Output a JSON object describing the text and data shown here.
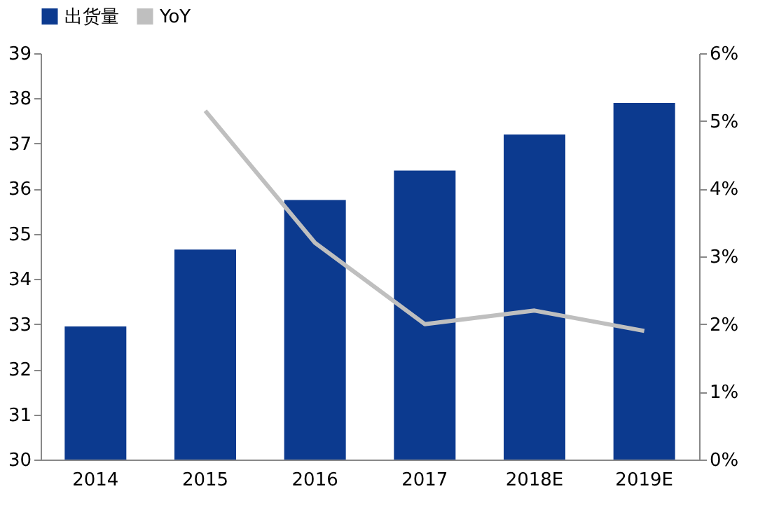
{
  "chart_data": {
    "type": "bar",
    "categories": [
      "2014",
      "2015",
      "2016",
      "2017",
      "2018E",
      "2019E"
    ],
    "series": [
      {
        "name": "出货量",
        "color": "#0c3a8f",
        "values": [
          32.95,
          34.65,
          35.75,
          36.4,
          37.2,
          37.9
        ]
      },
      {
        "name": "YoY",
        "type": "line",
        "axis": "y2",
        "color": "#bfbfbf",
        "values": [
          null,
          5.15,
          3.2,
          2.0,
          2.2,
          1.9
        ]
      }
    ],
    "ylim": [
      30,
      39
    ],
    "yticks": [
      30,
      31,
      32,
      33,
      34,
      35,
      36,
      37,
      38,
      39
    ],
    "y2lim": [
      0,
      6
    ],
    "y2ticks": [
      {
        "value": 0,
        "label": "0%"
      },
      {
        "value": 1,
        "label": "1%"
      },
      {
        "value": 2,
        "label": "2%"
      },
      {
        "value": 3,
        "label": "3%"
      },
      {
        "value": 4,
        "label": "4%"
      },
      {
        "value": 5,
        "label": "5%"
      },
      {
        "value": 6,
        "label": "6%"
      }
    ],
    "grid": false,
    "legend": "top",
    "marker": "none",
    "line_style": "solid"
  }
}
